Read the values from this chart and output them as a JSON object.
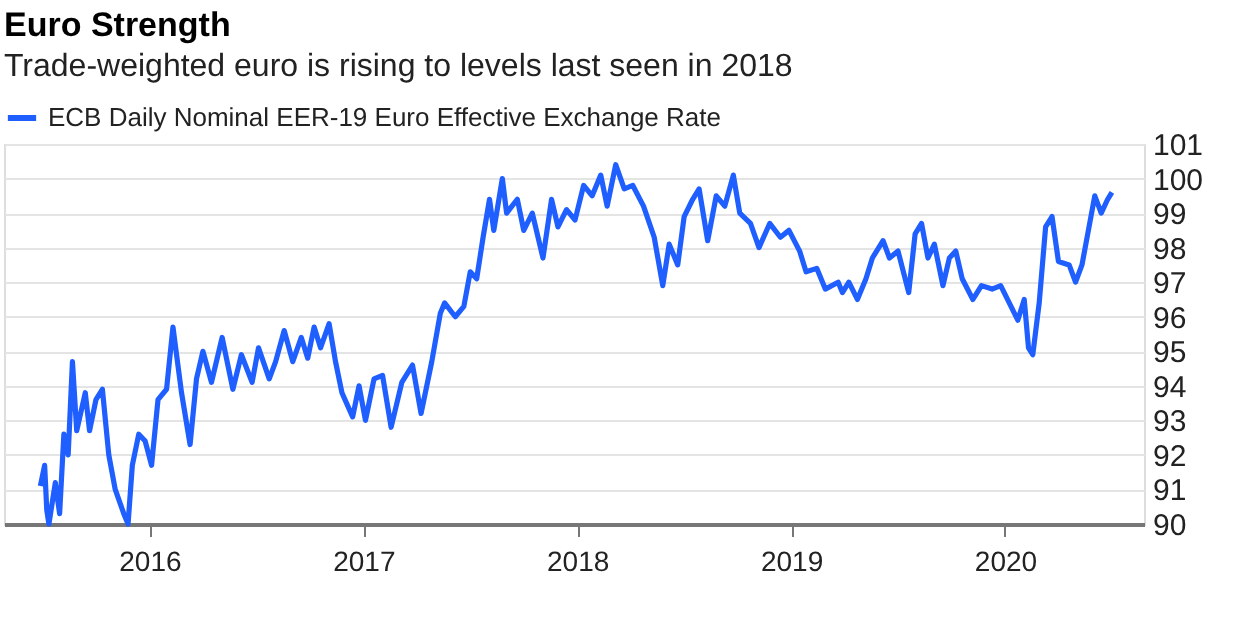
{
  "chart_data": {
    "type": "line",
    "title": "Euro Strength",
    "subtitle": "Trade-weighted euro is rising to levels last seen in 2018",
    "x": [
      2015.49,
      2015.51,
      2015.52,
      2015.53,
      2015.56,
      2015.58,
      2015.6,
      2015.62,
      2015.64,
      2015.66,
      2015.7,
      2015.72,
      2015.75,
      2015.78,
      2015.81,
      2015.84,
      2015.88,
      2015.9,
      2015.92,
      2015.95,
      2015.98,
      2016.01,
      2016.04,
      2016.08,
      2016.11,
      2016.15,
      2016.19,
      2016.22,
      2016.25,
      2016.29,
      2016.34,
      2016.39,
      2016.43,
      2016.48,
      2016.51,
      2016.56,
      2016.59,
      2016.63,
      2016.67,
      2016.71,
      2016.74,
      2016.77,
      2016.8,
      2016.84,
      2016.87,
      2016.9,
      2016.95,
      2016.98,
      2017.01,
      2017.05,
      2017.09,
      2017.13,
      2017.18,
      2017.23,
      2017.27,
      2017.32,
      2017.36,
      2017.38,
      2017.43,
      2017.47,
      2017.5,
      2017.53,
      2017.56,
      2017.59,
      2017.61,
      2017.65,
      2017.67,
      2017.72,
      2017.75,
      2017.79,
      2017.84,
      2017.88,
      2017.91,
      2017.95,
      2017.99,
      2018.03,
      2018.07,
      2018.11,
      2018.14,
      2018.18,
      2018.22,
      2018.26,
      2018.31,
      2018.36,
      2018.4,
      2018.43,
      2018.47,
      2018.5,
      2018.54,
      2018.57,
      2018.61,
      2018.65,
      2018.69,
      2018.73,
      2018.76,
      2018.81,
      2018.85,
      2018.9,
      2018.95,
      2018.99,
      2019.04,
      2019.07,
      2019.12,
      2019.16,
      2019.22,
      2019.24,
      2019.27,
      2019.31,
      2019.35,
      2019.38,
      2019.43,
      2019.46,
      2019.5,
      2019.55,
      2019.58,
      2019.61,
      2019.64,
      2019.67,
      2019.71,
      2019.74,
      2019.77,
      2019.8,
      2019.85,
      2019.89,
      2019.94,
      2019.98,
      2020.02,
      2020.06,
      2020.09,
      2020.11,
      2020.13,
      2020.16,
      2020.19,
      2020.22,
      2020.25,
      2020.3,
      2020.33,
      2020.36,
      2020.39,
      2020.42,
      2020.45,
      2020.48,
      2020.5
    ],
    "series": [
      {
        "name": "ECB Daily Nominal EER-19 Euro Effective Exchange Rate",
        "color": "#1f5eff",
        "values": [
          91.1,
          91.7,
          90.4,
          90.0,
          91.2,
          90.3,
          92.6,
          92.0,
          94.7,
          92.7,
          93.8,
          92.7,
          93.6,
          93.9,
          92.0,
          91.0,
          90.3,
          90.0,
          91.7,
          92.6,
          92.4,
          91.7,
          93.6,
          93.9,
          95.7,
          93.8,
          92.3,
          94.2,
          95.0,
          94.1,
          95.4,
          93.9,
          94.9,
          94.1,
          95.1,
          94.2,
          94.7,
          95.6,
          94.7,
          95.4,
          94.8,
          95.7,
          95.1,
          95.8,
          94.7,
          93.8,
          93.1,
          94.0,
          93.0,
          94.2,
          94.3,
          92.8,
          94.1,
          94.6,
          93.2,
          94.7,
          96.1,
          96.4,
          96.0,
          96.3,
          97.3,
          97.1,
          98.3,
          99.4,
          98.5,
          100.0,
          99.0,
          99.4,
          98.5,
          99.0,
          97.7,
          99.4,
          98.6,
          99.1,
          98.8,
          99.8,
          99.5,
          100.1,
          99.2,
          100.4,
          99.7,
          99.8,
          99.2,
          98.3,
          96.9,
          98.1,
          97.5,
          98.9,
          99.4,
          99.7,
          98.2,
          99.5,
          99.2,
          100.1,
          99.0,
          98.7,
          98.0,
          98.7,
          98.3,
          98.5,
          97.9,
          97.3,
          97.4,
          96.8,
          97.0,
          96.7,
          97.0,
          96.5,
          97.1,
          97.7,
          98.2,
          97.7,
          97.9,
          96.7,
          98.4,
          98.7,
          97.7,
          98.1,
          96.9,
          97.7,
          97.9,
          97.1,
          96.5,
          96.9,
          96.8,
          96.9,
          96.4,
          95.9,
          96.5,
          95.1,
          94.9,
          96.4,
          98.6,
          98.9,
          97.6,
          97.5,
          97.0,
          97.5,
          98.5,
          99.5,
          99.0,
          99.4,
          99.6
        ]
      }
    ],
    "xlim": [
      2015.32,
      2020.65
    ],
    "xticks": [
      2016,
      2017,
      2018,
      2019,
      2020
    ],
    "ylim": [
      90,
      101
    ],
    "yticks": [
      90,
      91,
      92,
      93,
      94,
      95,
      96,
      97,
      98,
      99,
      100,
      101
    ],
    "grid": "y",
    "legend": "top left",
    "marker": "none",
    "line_style": "solid"
  }
}
